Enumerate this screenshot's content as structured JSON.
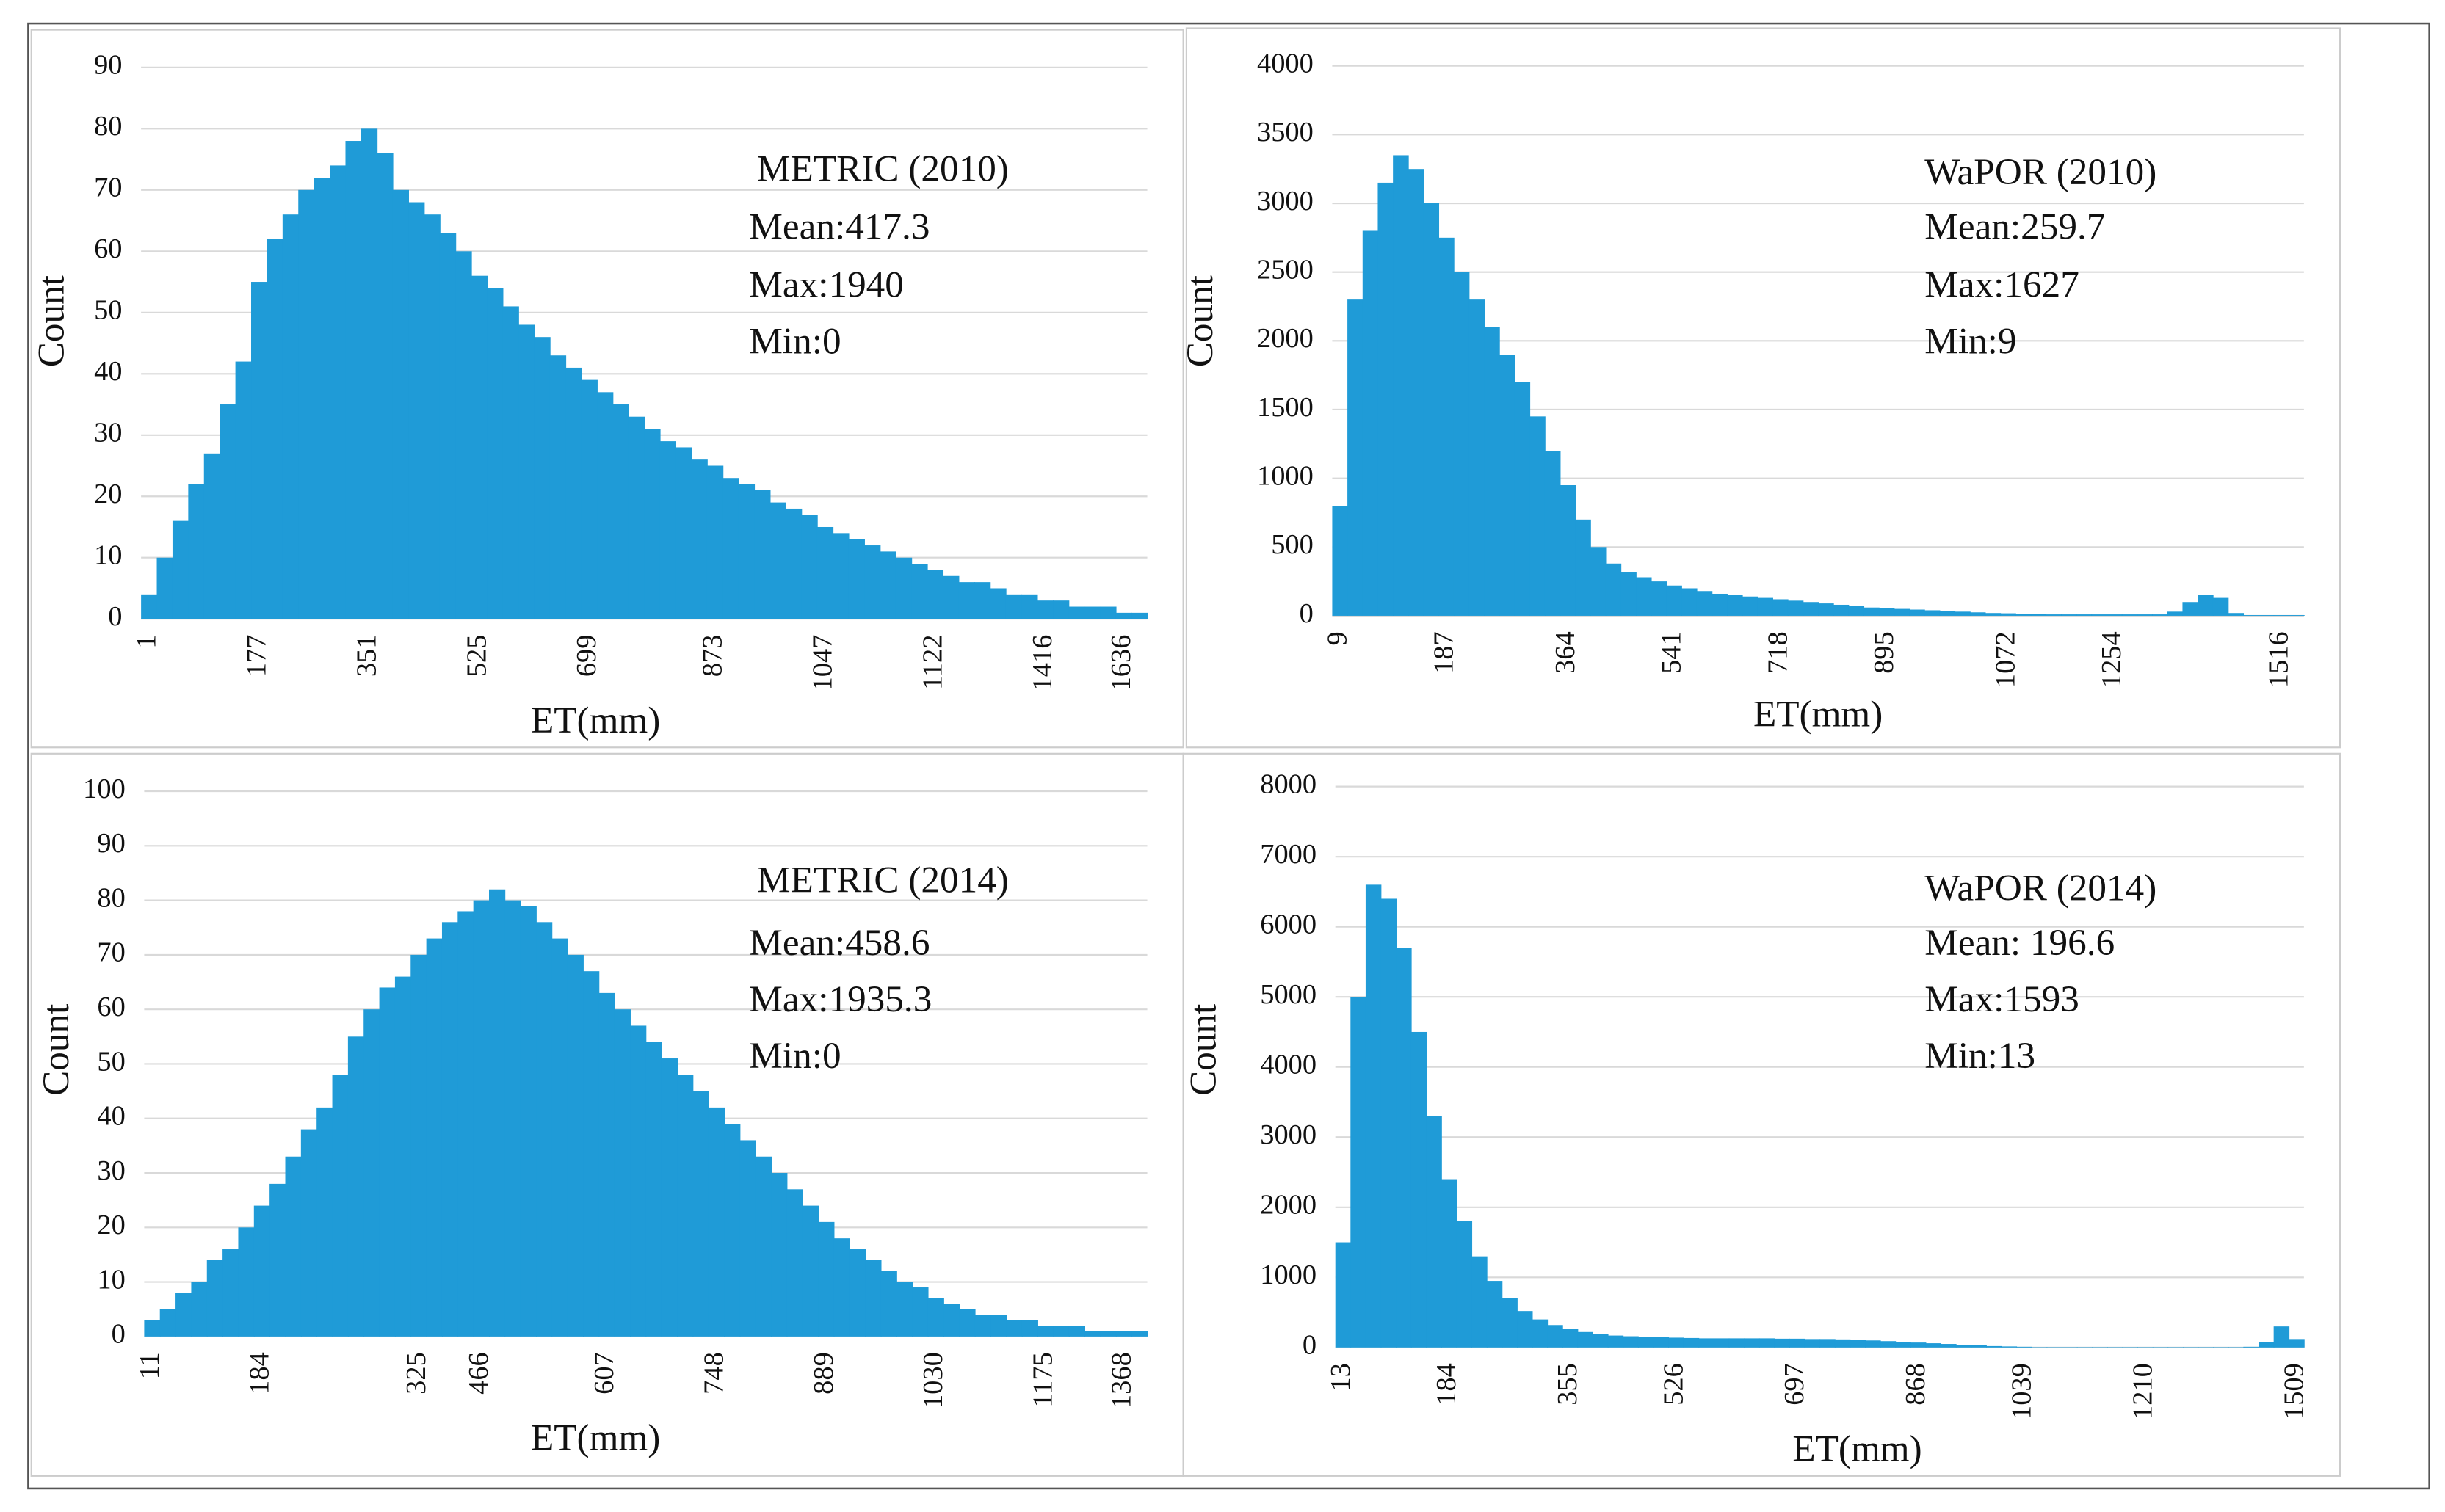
{
  "chart_data": [
    {
      "type": "bar",
      "xlabel": "ET(mm)",
      "ylabel": "Count",
      "color": "#1f9bd7",
      "grid": true,
      "annotations": [
        "METRIC (2010)",
        "Mean:417.3",
        "Max:1940",
        "Min:0"
      ],
      "ylim": [
        0,
        90
      ],
      "yticks": [
        0,
        10,
        20,
        30,
        40,
        50,
        60,
        70,
        80,
        90
      ],
      "categories": [
        "1",
        null,
        null,
        null,
        null,
        null,
        null,
        "177",
        null,
        null,
        null,
        null,
        null,
        null,
        "351",
        null,
        null,
        null,
        null,
        null,
        null,
        "525",
        null,
        null,
        null,
        null,
        null,
        null,
        "699",
        null,
        null,
        null,
        null,
        null,
        null,
        null,
        "873",
        null,
        null,
        null,
        null,
        null,
        null,
        "1047",
        null,
        null,
        null,
        null,
        null,
        null,
        "1122",
        null,
        null,
        null,
        null,
        null,
        null,
        "1416",
        null,
        null,
        null,
        null,
        "1636",
        null
      ],
      "values": [
        4,
        10,
        16,
        22,
        27,
        35,
        42,
        55,
        62,
        66,
        70,
        72,
        74,
        78,
        80,
        76,
        70,
        68,
        66,
        63,
        60,
        56,
        54,
        51,
        48,
        46,
        43,
        41,
        39,
        37,
        35,
        33,
        31,
        29,
        28,
        26,
        25,
        23,
        22,
        21,
        19,
        18,
        17,
        15,
        14,
        13,
        12,
        11,
        10,
        9,
        8,
        7,
        6,
        6,
        5,
        4,
        4,
        3,
        3,
        2,
        2,
        2,
        1,
        1
      ]
    },
    {
      "type": "bar",
      "xlabel": "ET(mm)",
      "ylabel": "Count",
      "color": "#1f9bd7",
      "grid": true,
      "annotations": [
        "WaPOR (2010)",
        "Mean:259.7",
        "Max:1627",
        "Min:9"
      ],
      "ylim": [
        0,
        4000
      ],
      "yticks": [
        0,
        500,
        1000,
        1500,
        2000,
        2500,
        3000,
        3500,
        4000
      ],
      "categories": [
        "9",
        null,
        null,
        null,
        null,
        null,
        null,
        "187",
        null,
        null,
        null,
        null,
        null,
        null,
        null,
        "364",
        null,
        null,
        null,
        null,
        null,
        null,
        "541",
        null,
        null,
        null,
        null,
        null,
        null,
        "718",
        null,
        null,
        null,
        null,
        null,
        null,
        "895",
        null,
        null,
        null,
        null,
        null,
        null,
        null,
        "1072",
        null,
        null,
        null,
        null,
        null,
        null,
        "1254",
        null,
        null,
        null,
        null,
        null,
        null,
        null,
        null,
        null,
        null,
        "1516",
        null
      ],
      "values": [
        800,
        2300,
        2800,
        3150,
        3350,
        3250,
        3000,
        2750,
        2500,
        2300,
        2100,
        1900,
        1700,
        1450,
        1200,
        950,
        700,
        500,
        380,
        320,
        280,
        250,
        220,
        200,
        180,
        160,
        150,
        140,
        130,
        120,
        110,
        100,
        90,
        80,
        70,
        60,
        55,
        50,
        45,
        40,
        35,
        30,
        25,
        20,
        18,
        15,
        12,
        10,
        10,
        10,
        10,
        10,
        10,
        10,
        10,
        30,
        100,
        150,
        130,
        20,
        5,
        5,
        5,
        5
      ]
    },
    {
      "type": "bar",
      "xlabel": "ET(mm)",
      "ylabel": "Count",
      "color": "#1f9bd7",
      "grid": true,
      "annotations": [
        "METRIC (2014)",
        "Mean:458.6",
        "Max:1935.3",
        "Min:0"
      ],
      "ylim": [
        0,
        100
      ],
      "yticks": [
        0,
        10,
        20,
        30,
        40,
        50,
        60,
        70,
        80,
        90,
        100
      ],
      "categories": [
        "11",
        null,
        null,
        null,
        null,
        null,
        null,
        "184",
        null,
        null,
        null,
        null,
        null,
        null,
        null,
        null,
        null,
        "325",
        null,
        null,
        null,
        "466",
        null,
        null,
        null,
        null,
        null,
        null,
        null,
        "607",
        null,
        null,
        null,
        null,
        null,
        null,
        "748",
        null,
        null,
        null,
        null,
        null,
        null,
        "889",
        null,
        null,
        null,
        null,
        null,
        null,
        "1030",
        null,
        null,
        null,
        null,
        null,
        null,
        "1175",
        null,
        null,
        null,
        null,
        "1368",
        null
      ],
      "values": [
        3,
        5,
        8,
        10,
        14,
        16,
        20,
        24,
        28,
        33,
        38,
        42,
        48,
        55,
        60,
        64,
        66,
        70,
        73,
        76,
        78,
        80,
        82,
        80,
        79,
        76,
        73,
        70,
        67,
        63,
        60,
        57,
        54,
        51,
        48,
        45,
        42,
        39,
        36,
        33,
        30,
        27,
        24,
        21,
        18,
        16,
        14,
        12,
        10,
        9,
        7,
        6,
        5,
        4,
        4,
        3,
        3,
        2,
        2,
        2,
        1,
        1,
        1,
        1
      ]
    },
    {
      "type": "bar",
      "xlabel": "ET(mm)",
      "ylabel": "Count",
      "color": "#1f9bd7",
      "grid": true,
      "annotations": [
        "WaPOR (2014)",
        "Mean:  196.6",
        "Max:1593",
        "Min:13"
      ],
      "ylim": [
        0,
        8000
      ],
      "yticks": [
        0,
        1000,
        2000,
        3000,
        4000,
        5000,
        6000,
        7000,
        8000
      ],
      "categories": [
        "13",
        null,
        null,
        null,
        null,
        null,
        null,
        "184",
        null,
        null,
        null,
        null,
        null,
        null,
        null,
        "355",
        null,
        null,
        null,
        null,
        null,
        null,
        "526",
        null,
        null,
        null,
        null,
        null,
        null,
        null,
        "697",
        null,
        null,
        null,
        null,
        null,
        null,
        null,
        "868",
        null,
        null,
        null,
        null,
        null,
        null,
        "1039",
        null,
        null,
        null,
        null,
        null,
        null,
        null,
        "1210",
        null,
        null,
        null,
        null,
        null,
        null,
        null,
        null,
        null,
        "1509"
      ],
      "values": [
        1500,
        5000,
        6600,
        6400,
        5700,
        4500,
        3300,
        2400,
        1800,
        1300,
        950,
        700,
        520,
        400,
        320,
        260,
        220,
        190,
        170,
        160,
        150,
        145,
        140,
        135,
        130,
        130,
        130,
        130,
        130,
        125,
        125,
        120,
        120,
        115,
        110,
        100,
        90,
        80,
        70,
        60,
        50,
        40,
        30,
        20,
        15,
        10,
        5,
        5,
        5,
        5,
        5,
        5,
        5,
        5,
        5,
        5,
        5,
        5,
        5,
        5,
        10,
        80,
        300,
        120
      ]
    }
  ]
}
